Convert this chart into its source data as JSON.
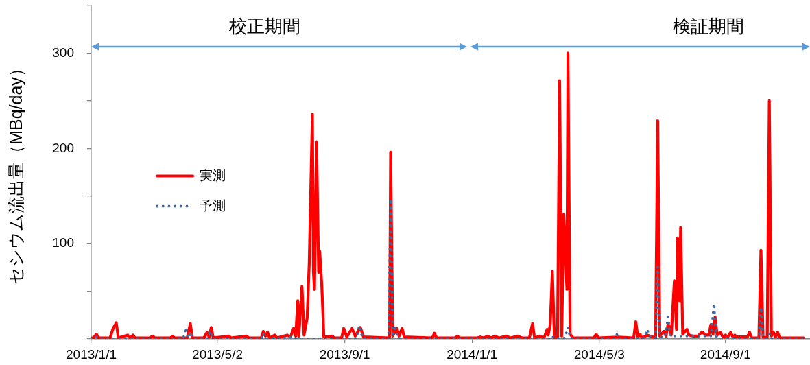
{
  "chart_data": {
    "type": "line",
    "ylabel": "セシウム流出量（MBq/day）",
    "annotations": [
      "校正期間",
      "検証期間"
    ],
    "xlim": [
      "2013-01-01",
      "2014-11-21"
    ],
    "xticks": [
      {
        "value": "2013-01-01",
        "label": "2013/1/1"
      },
      {
        "value": "2013-05-02",
        "label": "2013/5/2"
      },
      {
        "value": "2013-09-01",
        "label": "2013/9/1"
      },
      {
        "value": "2014-01-01",
        "label": "2014/1/1"
      },
      {
        "value": "2014-05-03",
        "label": "2014/5/3"
      },
      {
        "value": "2014-09-01",
        "label": "2014/9/1"
      }
    ],
    "ylim": [
      0,
      350
    ],
    "yticks": [
      {
        "value": 0,
        "label": null
      },
      {
        "value": 50,
        "label": null
      },
      100,
      {
        "value": 150,
        "label": null
      },
      200,
      {
        "value": 250,
        "label": null
      },
      300,
      {
        "value": 350,
        "label": null
      }
    ],
    "legend": "left",
    "marker": "none",
    "series": [
      {
        "name": "実測",
        "color": "#ff0000",
        "line_style": "solid",
        "x": [
          "2013-01-01",
          "2013-01-03",
          "2013-01-06",
          "2013-01-08",
          "2013-01-19",
          "2013-01-22",
          "2013-01-25",
          "2013-01-27",
          "2013-02-05",
          "2013-02-07",
          "2013-02-10",
          "2013-02-12",
          "2013-02-26",
          "2013-03-01",
          "2013-03-03",
          "2013-03-18",
          "2013-03-20",
          "2013-03-22",
          "2013-04-03",
          "2013-04-06",
          "2013-04-08",
          "2013-04-19",
          "2013-04-22",
          "2013-04-24",
          "2013-04-26",
          "2013-04-28",
          "2013-05-13",
          "2013-05-15",
          "2013-05-30",
          "2013-06-01",
          "2013-06-13",
          "2013-06-15",
          "2013-06-17",
          "2013-06-19",
          "2013-06-21",
          "2013-06-26",
          "2013-06-28",
          "2013-07-08",
          "2013-07-11",
          "2013-07-14",
          "2013-07-16",
          "2013-07-18",
          "2013-07-19",
          "2013-07-22",
          "2013-07-24",
          "2013-07-27",
          "2013-07-29",
          "2013-08-01",
          "2013-08-02",
          "2013-08-03",
          "2013-08-05",
          "2013-08-07",
          "2013-08-08",
          "2013-08-10",
          "2013-08-12",
          "2013-08-20",
          "2013-08-22",
          "2013-08-29",
          "2013-08-31",
          "2013-09-03",
          "2013-09-08",
          "2013-09-11",
          "2013-09-16",
          "2013-09-19",
          "2013-10-14",
          "2013-10-15",
          "2013-10-17",
          "2013-10-21",
          "2013-10-23",
          "2013-10-26",
          "2013-10-28",
          "2013-11-24",
          "2013-11-26",
          "2013-11-28",
          "2013-12-16",
          "2013-12-18",
          "2013-12-20",
          "2014-01-06",
          "2014-01-09",
          "2014-01-12",
          "2014-01-16",
          "2014-01-19",
          "2014-01-23",
          "2014-01-27",
          "2014-02-03",
          "2014-02-07",
          "2014-02-14",
          "2014-02-18",
          "2014-02-25",
          "2014-02-28",
          "2014-03-02",
          "2014-03-07",
          "2014-03-11",
          "2014-03-14",
          "2014-03-15",
          "2014-03-17",
          "2014-03-19",
          "2014-03-21",
          "2014-03-24",
          "2014-03-26",
          "2014-03-28",
          "2014-03-30",
          "2014-04-02",
          "2014-04-03",
          "2014-04-05",
          "2014-04-08",
          "2014-04-28",
          "2014-04-30",
          "2014-05-02",
          "2014-05-21",
          "2014-06-05",
          "2014-06-07",
          "2014-06-09",
          "2014-06-11",
          "2014-06-13",
          "2014-06-18",
          "2014-06-26",
          "2014-06-28",
          "2014-06-30",
          "2014-07-04",
          "2014-07-06",
          "2014-07-08",
          "2014-07-11",
          "2014-07-14",
          "2014-07-16",
          "2014-07-17",
          "2014-07-19",
          "2014-07-20",
          "2014-07-22",
          "2014-07-26",
          "2014-07-28",
          "2014-08-01",
          "2014-08-06",
          "2014-08-08",
          "2014-08-10",
          "2014-08-13",
          "2014-08-16",
          "2014-08-18",
          "2014-08-20",
          "2014-08-22",
          "2014-08-24",
          "2014-08-27",
          "2014-08-29",
          "2014-08-31",
          "2014-09-01",
          "2014-09-03",
          "2014-09-06",
          "2014-09-08",
          "2014-09-10",
          "2014-09-12",
          "2014-09-22",
          "2014-09-24",
          "2014-09-26",
          "2014-10-03",
          "2014-10-05",
          "2014-10-07",
          "2014-10-11",
          "2014-10-13",
          "2014-10-15",
          "2014-10-17",
          "2014-10-19",
          "2014-10-21",
          "2014-10-23",
          "2014-11-15"
        ],
        "values": [
          1,
          1,
          5,
          1,
          1,
          11,
          17,
          1,
          4,
          1,
          4,
          1,
          1,
          3,
          1,
          1,
          3,
          1,
          1,
          16,
          1,
          1,
          7,
          2,
          12,
          1,
          3,
          1,
          3,
          1,
          1,
          8,
          3,
          7,
          1,
          4,
          1,
          4,
          2,
          11,
          3,
          40,
          3,
          55,
          4,
          22,
          80,
          236,
          70,
          52,
          207,
          70,
          92,
          56,
          2,
          3,
          1,
          1,
          11,
          2,
          11,
          3,
          12,
          2,
          1,
          196,
          3,
          11,
          3,
          11,
          2,
          1,
          6,
          1,
          1,
          3,
          1,
          1,
          2,
          1,
          3,
          1,
          3,
          1,
          3,
          1,
          3,
          1,
          1,
          16,
          1,
          3,
          1,
          10,
          4,
          15,
          71,
          1,
          2,
          271,
          3,
          131,
          52,
          300,
          5,
          1,
          1,
          5,
          1,
          2,
          1,
          18,
          2,
          5,
          1,
          4,
          1,
          229,
          3,
          8,
          3,
          16,
          4,
          61,
          10,
          106,
          40,
          117,
          5,
          10,
          4,
          3,
          3,
          6,
          7,
          4,
          4,
          15,
          5,
          23,
          4,
          7,
          3,
          2,
          4,
          2,
          7,
          2,
          4,
          2,
          2,
          7,
          1,
          1,
          93,
          2,
          1,
          250,
          3,
          7,
          2,
          7,
          1,
          1
        ]
      },
      {
        "name": "予測",
        "color": "#3f6a9b",
        "line_style": "dotted",
        "x": [
          "2013-01-01",
          "2013-01-04",
          "2013-01-06",
          "2013-01-08",
          "2013-03-30",
          "2013-04-02",
          "2013-04-04",
          "2013-04-07",
          "2013-04-09",
          "2013-04-22",
          "2013-04-25",
          "2013-04-28",
          "2013-06-13",
          "2013-06-15",
          "2013-06-17",
          "2013-07-14",
          "2013-07-16",
          "2013-09-12",
          "2013-09-15",
          "2013-09-18",
          "2013-10-13",
          "2013-10-15",
          "2013-10-17",
          "2013-10-19",
          "2013-10-22",
          "2013-10-25",
          "2014-03-17",
          "2014-03-19",
          "2014-03-21",
          "2014-03-31",
          "2014-04-03",
          "2014-04-05",
          "2014-04-08",
          "2014-05-18",
          "2014-05-20",
          "2014-05-22",
          "2014-06-15",
          "2014-06-18",
          "2014-06-20",
          "2014-06-26",
          "2014-06-28",
          "2014-06-30",
          "2014-07-05",
          "2014-07-08",
          "2014-07-10",
          "2014-08-18",
          "2014-08-21",
          "2014-08-23",
          "2014-08-26",
          "2014-10-03",
          "2014-10-05",
          "2014-10-07",
          "2014-10-11",
          "2014-10-13",
          "2014-10-15",
          "2014-11-15"
        ],
        "values": [
          0,
          0,
          2,
          0,
          0,
          12,
          1,
          7,
          0,
          0,
          8,
          0,
          0,
          6,
          0,
          2,
          0,
          0,
          14,
          1,
          0,
          147,
          2,
          14,
          1,
          0,
          0,
          3,
          0,
          1,
          12,
          2,
          0,
          0,
          5,
          0,
          1,
          10,
          3,
          1,
          76,
          2,
          2,
          23,
          3,
          3,
          37,
          3,
          0,
          1,
          33,
          2,
          0,
          5,
          0,
          0
        ]
      }
    ]
  }
}
